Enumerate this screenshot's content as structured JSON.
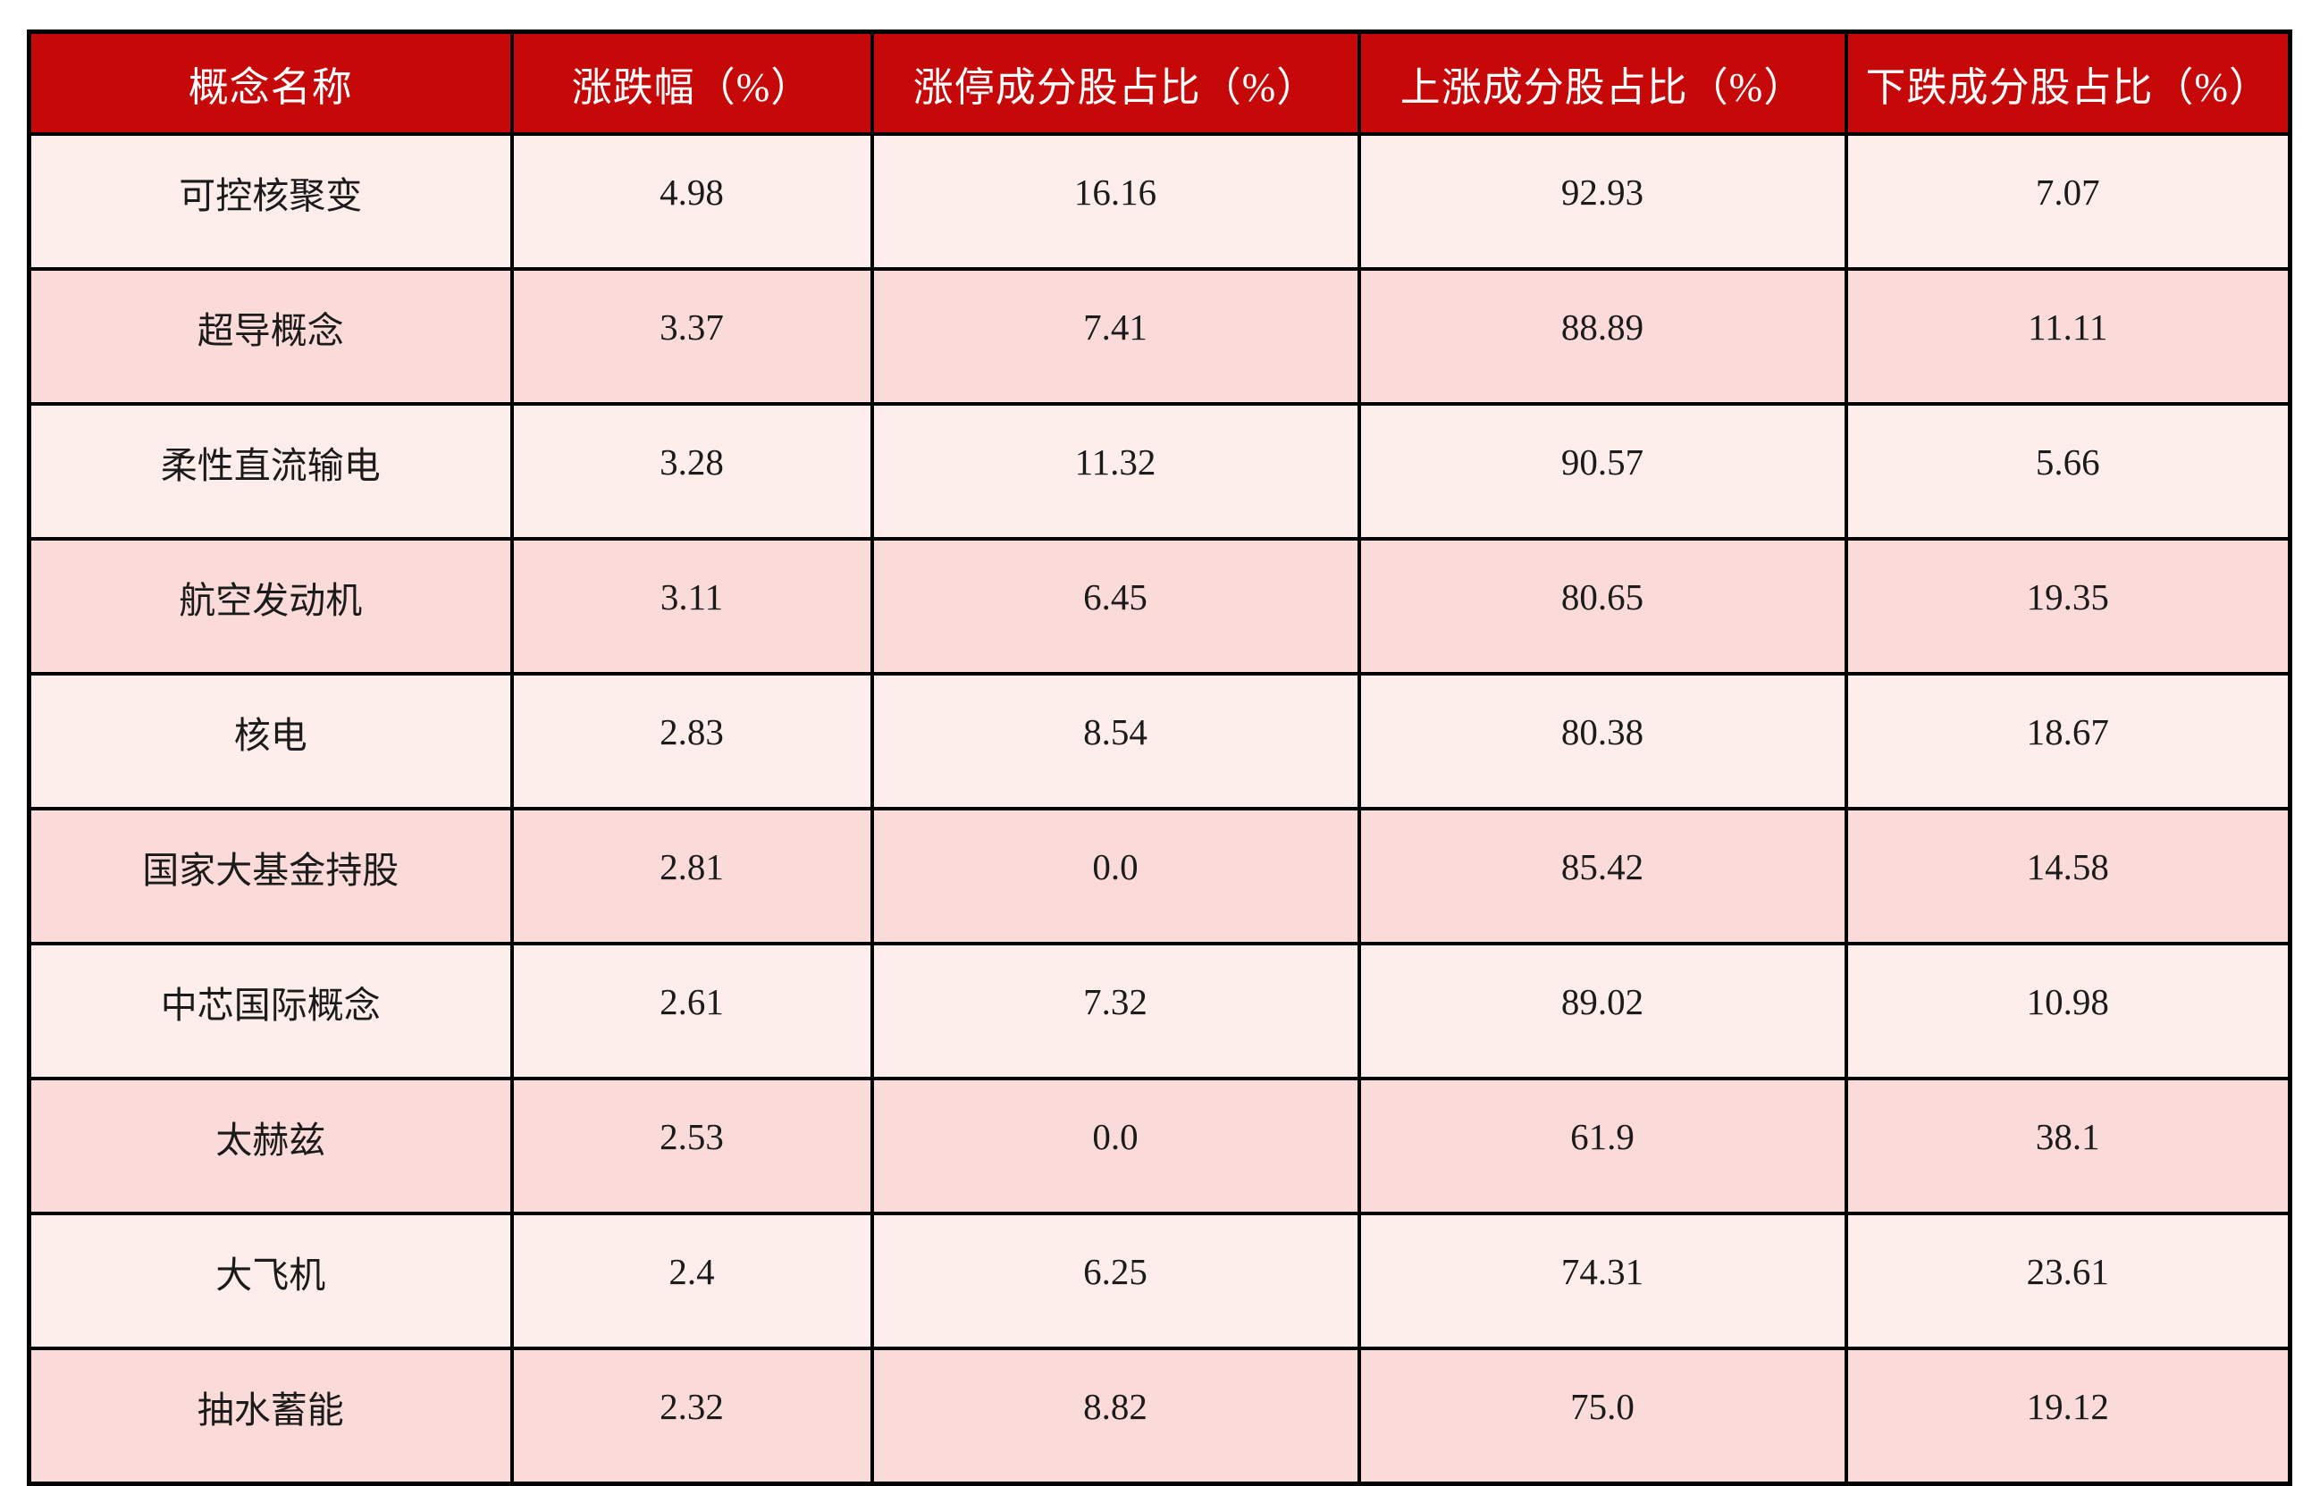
{
  "chart_data": {
    "type": "table",
    "title": "",
    "columns": [
      "概念名称",
      "涨跌幅（%）",
      "涨停成分股占比（%）",
      "上涨成分股占比（%）",
      "下跌成分股占比（%）"
    ],
    "rows": [
      [
        "可控核聚变",
        "4.98",
        "16.16",
        "92.93",
        "7.07"
      ],
      [
        "超导概念",
        "3.37",
        "7.41",
        "88.89",
        "11.11"
      ],
      [
        "柔性直流输电",
        "3.28",
        "11.32",
        "90.57",
        "5.66"
      ],
      [
        "航空发动机",
        "3.11",
        "6.45",
        "80.65",
        "19.35"
      ],
      [
        "核电",
        "2.83",
        "8.54",
        "80.38",
        "18.67"
      ],
      [
        "国家大基金持股",
        "2.81",
        "0.0",
        "85.42",
        "14.58"
      ],
      [
        "中芯国际概念",
        "2.61",
        "7.32",
        "89.02",
        "10.98"
      ],
      [
        "太赫兹",
        "2.53",
        "0.0",
        "61.9",
        "38.1"
      ],
      [
        "大飞机",
        "2.4",
        "6.25",
        "74.31",
        "23.61"
      ],
      [
        "抽水蓄能",
        "2.32",
        "8.82",
        "75.0",
        "19.12"
      ]
    ]
  },
  "colors": {
    "header_bg": "#C60808",
    "header_text": "#FFFFFF",
    "row_odd_bg": "#FDEDEB",
    "row_even_bg": "#FBDBD9",
    "border": "#000000",
    "cell_text": "#1B1B1B"
  }
}
